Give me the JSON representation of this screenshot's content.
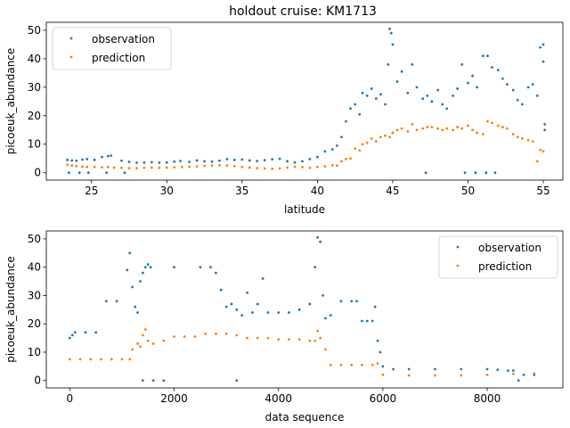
{
  "figure": {
    "title": "holdout cruise: KM1713"
  },
  "chart_data": [
    {
      "type": "scatter",
      "title": "holdout cruise: KM1713",
      "xlabel": "latitude",
      "ylabel": "picoeuk_abundance",
      "xlim": [
        22.0,
        56.3
      ],
      "ylim": [
        -2.6,
        52.8
      ],
      "xticks": [
        25,
        30,
        35,
        40,
        45,
        50,
        55
      ],
      "yticks": [
        0,
        10,
        20,
        30,
        40,
        50
      ],
      "grid": false,
      "legend_position": "upper left",
      "series": [
        {
          "name": "observation",
          "color": "#1f77b4",
          "x": [
            23.4,
            23.7,
            24.0,
            24.4,
            24.7,
            25.2,
            25.7,
            26.1,
            26.3,
            27.0,
            27.5,
            28.0,
            28.5,
            29.0,
            29.5,
            30.0,
            30.5,
            30.9,
            31.5,
            32.0,
            32.5,
            33.0,
            33.5,
            34.0,
            34.5,
            35.0,
            35.5,
            36.0,
            36.5,
            37.0,
            37.5,
            38.0,
            38.5,
            39.0,
            39.5,
            40.0,
            40.5,
            41.0,
            41.3,
            41.6,
            41.9,
            42.2,
            42.5,
            42.8,
            43.0,
            43.3,
            43.6,
            43.9,
            44.2,
            44.5,
            44.7,
            44.8,
            44.9,
            45.0,
            45.3,
            45.6,
            46.0,
            46.3,
            46.6,
            47.0,
            47.3,
            47.6,
            48.0,
            48.3,
            48.6,
            49.0,
            49.3,
            49.6,
            50.0,
            50.3,
            50.6,
            51.0,
            51.3,
            51.6,
            52.0,
            52.3,
            52.6,
            53.0,
            53.3,
            53.6,
            54.0,
            54.3,
            54.6,
            54.8,
            55.0,
            55.0,
            55.1,
            55.1,
            49.8,
            50.5,
            51.2,
            51.8,
            47.2,
            23.5,
            24.2,
            24.8,
            26.0,
            27.2
          ],
          "y": [
            4.5,
            4.3,
            4.2,
            4.6,
            4.8,
            4.5,
            5.5,
            5.8,
            6.0,
            4.2,
            3.8,
            3.5,
            3.6,
            3.7,
            3.5,
            3.6,
            3.9,
            4.1,
            3.8,
            4.3,
            4.0,
            3.9,
            4.2,
            4.8,
            4.5,
            4.6,
            4.3,
            4.1,
            4.4,
            4.7,
            4.9,
            4.0,
            3.6,
            4.0,
            4.8,
            5.5,
            7.5,
            8.2,
            9.5,
            12.5,
            18.0,
            22.5,
            24.0,
            20.5,
            28.0,
            27.0,
            29.5,
            26.0,
            27.5,
            24.0,
            38.0,
            50.5,
            49.0,
            45.0,
            32.0,
            35.5,
            28.0,
            38.0,
            30.0,
            26.0,
            27.0,
            25.0,
            29.0,
            24.0,
            22.5,
            27.0,
            29.5,
            38.0,
            31.5,
            34.0,
            30.0,
            41.0,
            41.0,
            37.0,
            36.0,
            33.0,
            31.0,
            29.0,
            25.5,
            24.0,
            30.0,
            31.0,
            27.0,
            44.0,
            45.0,
            39.0,
            17.0,
            15.0,
            0.0,
            0.0,
            0.0,
            0.0,
            0.0,
            0.0,
            0.0,
            0.0,
            0.0,
            0.0
          ]
        },
        {
          "name": "prediction",
          "color": "#ff7f0e",
          "x": [
            23.4,
            23.7,
            24.0,
            24.4,
            24.7,
            25.2,
            25.7,
            26.1,
            26.5,
            27.0,
            27.5,
            28.0,
            28.5,
            29.0,
            29.5,
            30.0,
            30.5,
            31.0,
            31.5,
            32.0,
            32.5,
            33.0,
            33.5,
            34.0,
            34.5,
            35.0,
            35.5,
            36.0,
            36.5,
            37.0,
            37.5,
            38.0,
            38.5,
            39.0,
            39.5,
            40.0,
            40.5,
            41.0,
            41.3,
            41.6,
            41.9,
            42.2,
            42.5,
            42.8,
            43.0,
            43.3,
            43.6,
            43.9,
            44.2,
            44.5,
            44.8,
            45.0,
            45.3,
            45.6,
            46.0,
            46.3,
            46.6,
            47.0,
            47.3,
            47.6,
            48.0,
            48.3,
            48.6,
            49.0,
            49.3,
            49.6,
            50.0,
            50.3,
            50.6,
            51.0,
            51.3,
            51.6,
            52.0,
            52.3,
            52.6,
            53.0,
            53.3,
            53.6,
            54.0,
            54.3,
            54.6,
            54.8,
            55.0
          ],
          "y": [
            2.8,
            2.5,
            2.3,
            2.1,
            2.0,
            2.0,
            1.9,
            2.0,
            1.8,
            1.7,
            1.6,
            1.6,
            1.7,
            1.8,
            1.7,
            1.8,
            1.9,
            2.0,
            2.1,
            2.2,
            2.4,
            2.5,
            2.6,
            2.5,
            2.3,
            2.0,
            1.8,
            1.6,
            1.5,
            1.4,
            1.5,
            1.8,
            2.1,
            2.0,
            1.7,
            2.0,
            2.2,
            2.6,
            2.5,
            4.0,
            4.8,
            5.0,
            8.5,
            7.8,
            10.0,
            10.5,
            12.0,
            11.0,
            12.5,
            13.0,
            12.5,
            14.0,
            15.0,
            15.5,
            14.5,
            17.0,
            15.0,
            15.5,
            16.0,
            16.0,
            15.5,
            15.0,
            15.5,
            15.0,
            16.0,
            15.5,
            16.5,
            15.0,
            14.0,
            13.5,
            18.0,
            17.5,
            16.5,
            16.0,
            15.5,
            13.5,
            12.5,
            12.0,
            11.5,
            11.0,
            4.0,
            8.0,
            7.5
          ]
        }
      ]
    },
    {
      "type": "scatter",
      "xlabel": "data sequence",
      "ylabel": "picoeuk_abundance",
      "xlim": [
        -450,
        9450
      ],
      "ylim": [
        -2.6,
        52.8
      ],
      "xticks": [
        0,
        2000,
        4000,
        6000,
        8000
      ],
      "yticks": [
        0,
        10,
        20,
        30,
        40,
        50
      ],
      "grid": false,
      "legend_position": "upper right",
      "series": [
        {
          "name": "observation",
          "color": "#1f77b4",
          "x": [
            0,
            50,
            100,
            300,
            500,
            700,
            900,
            1100,
            1150,
            1200,
            1250,
            1300,
            1350,
            1400,
            1450,
            1500,
            1550,
            2000,
            2500,
            2700,
            2800,
            2900,
            3000,
            3100,
            3200,
            3300,
            3400,
            3500,
            3600,
            3700,
            3800,
            4000,
            4200,
            4400,
            4600,
            4700,
            4750,
            4800,
            4850,
            4900,
            5000,
            5200,
            5400,
            5500,
            5600,
            5700,
            5800,
            5850,
            5900,
            5950,
            6000,
            6200,
            6500,
            7000,
            7500,
            8000,
            8200,
            8400,
            8500,
            8700,
            8900,
            1400,
            1600,
            1800,
            3200,
            8600
          ],
          "y": [
            15.0,
            16.0,
            17.0,
            17.0,
            17.0,
            28.0,
            28.0,
            39.0,
            45.0,
            33.0,
            26.0,
            24.0,
            35.0,
            38.0,
            40.0,
            41.0,
            40.0,
            40.0,
            40.0,
            40.0,
            38.0,
            32.0,
            26.0,
            27.0,
            25.0,
            23.0,
            31.0,
            24.0,
            27.0,
            36.0,
            24.0,
            24.0,
            24.0,
            25.0,
            27.0,
            40.0,
            50.5,
            49.0,
            30.0,
            22.0,
            23.0,
            28.0,
            28.0,
            28.0,
            21.0,
            21.0,
            21.0,
            26.0,
            14.0,
            10.0,
            5.0,
            4.0,
            4.0,
            4.0,
            4.0,
            4.0,
            3.8,
            3.5,
            3.5,
            2.0,
            2.0,
            0.0,
            0.0,
            0.0,
            0.0,
            0.0
          ]
        },
        {
          "name": "prediction",
          "color": "#ff7f0e",
          "x": [
            0,
            200,
            400,
            600,
            800,
            1000,
            1150,
            1200,
            1300,
            1350,
            1400,
            1450,
            1500,
            1600,
            1800,
            2000,
            2200,
            2400,
            2600,
            2800,
            3000,
            3200,
            3400,
            3600,
            3800,
            4000,
            4200,
            4400,
            4600,
            4700,
            4750,
            4800,
            4900,
            5000,
            5200,
            5400,
            5600,
            5800,
            5900,
            6000,
            6500,
            7000,
            7500,
            8000,
            8500,
            8900
          ],
          "y": [
            7.5,
            7.5,
            7.5,
            7.5,
            7.5,
            7.5,
            7.5,
            11.0,
            13.0,
            12.0,
            16.0,
            18.0,
            14.0,
            13.0,
            14.0,
            15.5,
            15.5,
            15.5,
            16.5,
            16.5,
            16.5,
            16.0,
            15.0,
            15.0,
            15.0,
            14.5,
            14.5,
            14.5,
            14.0,
            14.0,
            17.5,
            15.0,
            11.0,
            5.5,
            5.5,
            5.5,
            5.5,
            5.5,
            6.0,
            2.0,
            1.8,
            1.8,
            1.8,
            2.0,
            2.3,
            2.5
          ]
        }
      ]
    }
  ]
}
